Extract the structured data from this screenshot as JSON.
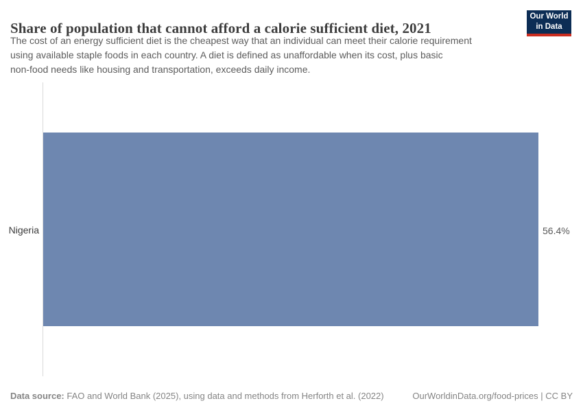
{
  "header": {
    "title": "Share of population that cannot afford a calorie sufficient diet, 2021",
    "subtitle_lines": [
      "The cost of an energy sufficient diet is the cheapest way that an individual can meet their calorie requirement",
      "using available staple foods in each country. A diet is defined as unaffordable when its cost, plus basic",
      "non-food needs like housing and transportation, exceeds daily income."
    ],
    "logo": {
      "line1": "Our World",
      "line2": "in Data"
    }
  },
  "chart_data": {
    "type": "bar",
    "orientation": "horizontal",
    "title": "Share of population that cannot afford a calorie sufficient diet, 2021",
    "categories": [
      "Nigeria"
    ],
    "values": [
      56.4
    ],
    "value_labels": [
      "56.4%"
    ],
    "xlabel": "",
    "ylabel": "",
    "xlim": [
      0,
      56.4
    ],
    "grid": false,
    "legend": false
  },
  "colors": {
    "bar": "#6e87b0",
    "axis_line": "#d9d9d9",
    "logo_bg": "#0c2d55",
    "logo_accent": "#cb2d20",
    "title_text": "#3d3d3d",
    "subtitle_text": "#5b5b5b",
    "footer_text": "#848484"
  },
  "footer": {
    "source_label": "Data source:",
    "source_text": " FAO and World Bank (2025), using data and methods from Herforth et al. (2022)",
    "right_text": "OurWorldinData.org/food-prices | CC BY"
  }
}
